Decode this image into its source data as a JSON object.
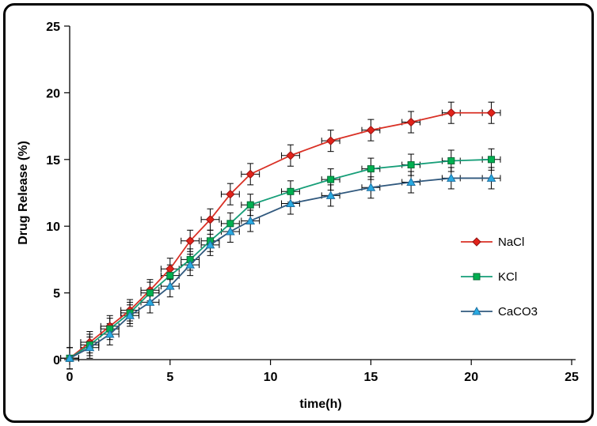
{
  "figure": {
    "frame_color": "#000000",
    "background": "#ffffff"
  },
  "chart_data": {
    "type": "line",
    "title": "",
    "xlabel": "time(h)",
    "ylabel": "Drug Release (%)",
    "xlim": [
      0,
      25
    ],
    "ylim": [
      0,
      25
    ],
    "xticks": [
      0,
      5,
      10,
      15,
      20,
      25
    ],
    "yticks": [
      0,
      5,
      10,
      15,
      20,
      25
    ],
    "grid": false,
    "legend_position": "right-inside",
    "error_bars": {
      "y": 0.8,
      "x": 0.45,
      "color": "#000000"
    },
    "x": [
      0,
      1,
      2,
      3,
      4,
      5,
      6,
      7,
      8,
      9,
      11,
      13,
      15,
      17,
      19,
      21
    ],
    "series": [
      {
        "name": "NaCl",
        "marker": "diamond",
        "color": "#e2231a",
        "line_color": "#d93025",
        "edge_color": "#941313",
        "values": [
          0.1,
          1.3,
          2.5,
          3.7,
          5.2,
          6.8,
          8.9,
          10.5,
          12.4,
          13.9,
          15.3,
          16.4,
          17.2,
          17.8,
          18.5,
          18.5
        ]
      },
      {
        "name": "KCl",
        "marker": "square",
        "color": "#00b050",
        "line_color": "#169e78",
        "edge_color": "#046a36",
        "values": [
          0.1,
          1.1,
          2.3,
          3.5,
          5.0,
          6.3,
          7.5,
          8.9,
          10.2,
          11.6,
          12.6,
          13.5,
          14.3,
          14.6,
          14.9,
          15.0
        ]
      },
      {
        "name": "CaCO3",
        "marker": "triangle",
        "color": "#29abe2",
        "line_color": "#31597e",
        "edge_color": "#1f6fa0",
        "values": [
          0.1,
          0.9,
          1.9,
          3.3,
          4.3,
          5.5,
          7.1,
          8.6,
          9.6,
          10.4,
          11.7,
          12.3,
          12.9,
          13.3,
          13.6,
          13.6
        ]
      }
    ]
  }
}
